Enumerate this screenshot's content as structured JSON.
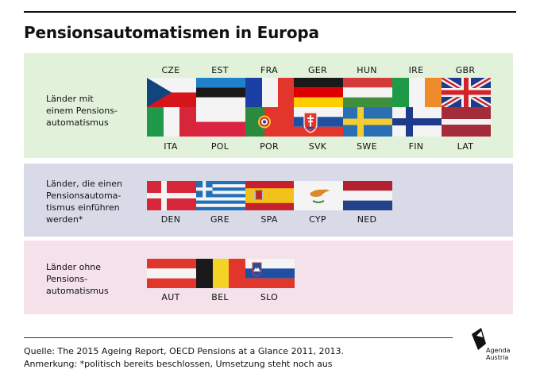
{
  "title": "Pensionsautomatismen in Europa",
  "groups": [
    {
      "label": "Länder mit\neinem Pensions-\nautomatismus",
      "row1": [
        "CZE",
        "EST",
        "FRA",
        "GER",
        "HUN",
        "IRE",
        "GBR"
      ],
      "row2": [
        "ITA",
        "POL",
        "POR",
        "SVK",
        "SWE",
        "FIN",
        "LAT"
      ]
    },
    {
      "label": "Länder, die einen\nPensionsautoma-\ntismus einführen\nwerden*",
      "row1": [
        "DEN",
        "GRE",
        "SPA",
        "CYP",
        "NED"
      ]
    },
    {
      "label": "Länder ohne\nPensions-\nautomatismus",
      "row1": [
        "AUT",
        "BEL",
        "SLO"
      ]
    }
  ],
  "footer": {
    "source": "Quelle: The 2015 Ageing Report, OECD Pensions at a Glance 2011, 2013.",
    "note": "Anmerkung: *politisch bereits beschlossen, Umsetzung steht noch aus"
  },
  "logo": {
    "text": "Agenda\nAustria"
  },
  "colors": {
    "panel_with": "#e2f1da",
    "panel_planned": "#d9dae8",
    "panel_without": "#f4e1ea"
  }
}
